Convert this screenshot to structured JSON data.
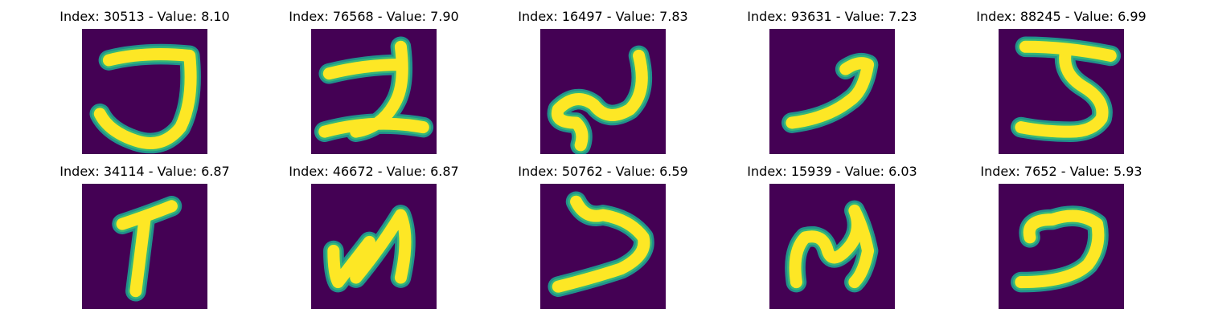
{
  "palette": {
    "background": "#440154",
    "stroke_outer": "#21918c",
    "stroke_mid": "#35b779",
    "stroke_inner": "#fde725"
  },
  "images": [
    {
      "title": "Index: 30513 - Value: 8.10",
      "glyph": "J-shape"
    },
    {
      "title": "Index: 76568 - Value: 7.90",
      "glyph": "2-shape"
    },
    {
      "title": "Index: 16497 - Value: 7.83",
      "glyph": "S-curve"
    },
    {
      "title": "Index: 93631 - Value: 7.23",
      "glyph": "hook-stroke"
    },
    {
      "title": "Index: 88245 - Value: 6.99",
      "glyph": "5-shape"
    },
    {
      "title": "Index: 34114 - Value: 6.87",
      "glyph": "T-shape"
    },
    {
      "title": "Index: 46672 - Value: 6.87",
      "glyph": "N-shape"
    },
    {
      "title": "Index: 50762 - Value: 6.59",
      "glyph": "reverse-S"
    },
    {
      "title": "Index: 15939 - Value: 6.03",
      "glyph": "N-curve"
    },
    {
      "title": "Index: 7652 - Value: 5.93",
      "glyph": "reverse-C"
    }
  ]
}
